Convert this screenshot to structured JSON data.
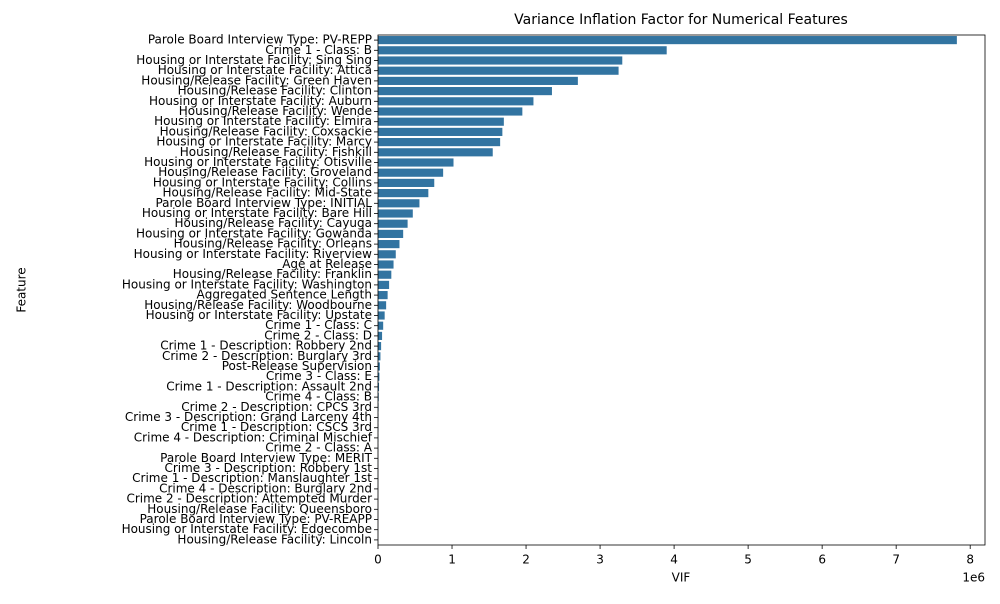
{
  "chart_data": {
    "type": "barh",
    "title": "Variance Inflation Factor for Numerical Features",
    "x_label": "VIF",
    "y_label": "Feature",
    "x_offset_label": "1e6",
    "color": "#3274a1",
    "categories": [
      "Parole Board Interview Type: PV-REPP",
      "Crime 1 - Class: B",
      "Housing or Interstate Facility: Sing Sing",
      "Housing or Interstate Facility: Attica",
      "Housing/Release Facility: Green Haven",
      "Housing/Release Facility: Clinton",
      "Housing or Interstate Facility: Auburn",
      "Housing/Release Facility: Wende",
      "Housing or Interstate Facility: Elmira",
      "Housing/Release Facility: Coxsackie",
      "Housing or Interstate Facility: Marcy",
      "Housing/Release Facility: Fishkill",
      "Housing or Interstate Facility: Otisville",
      "Housing/Release Facility: Groveland",
      "Housing or Interstate Facility: Collins",
      "Housing/Release Facility: Mid-State",
      "Parole Board Interview Type: INITIAL",
      "Housing or Interstate Facility: Bare Hill",
      "Housing/Release Facility: Cayuga",
      "Housing or Interstate Facility: Gowanda",
      "Housing/Release Facility: Orleans",
      "Housing or Interstate Facility: Riverview",
      "Age at Release",
      "Housing/Release Facility: Franklin",
      "Housing or Interstate Facility: Washington",
      "Aggregated Sentence Length",
      "Housing/Release Facility: Woodbourne",
      "Housing or Interstate Facility: Upstate",
      "Crime 1 - Class: C",
      "Crime 2 - Class: D",
      "Crime 1 - Description: Robbery 2nd",
      "Crime 2 - Description: Burglary 3rd",
      "Post-Release Supervision",
      "Crime 3 - Class: E",
      "Crime 1 - Description: Assault 2nd",
      "Crime 4 - Class: B",
      "Crime 2 - Description: CPCS 3rd",
      "Crime 3 - Description: Grand Larceny 4th",
      "Crime 1 - Description: CSCS 3rd",
      "Crime 4 - Description: Criminal Mischief",
      "Crime 2 - Class: A",
      "Parole Board Interview Type: MERIT",
      "Crime 3 - Description: Robbery 1st",
      "Crime 1 - Description: Manslaughter 1st",
      "Crime 4 - Description: Burglary 2nd",
      "Crime 2 - Description: Attempted Murder",
      "Housing/Release Facility: Queensboro",
      "Parole Board Interview Type: PV-REAPP",
      "Housing or Interstate Facility: Edgecombe",
      "Housing/Release Facility: Lincoln"
    ],
    "values": [
      7820000,
      3900000,
      3300000,
      3250000,
      2700000,
      2350000,
      2100000,
      1950000,
      1700000,
      1680000,
      1650000,
      1550000,
      1020000,
      880000,
      760000,
      680000,
      560000,
      470000,
      400000,
      340000,
      290000,
      240000,
      210000,
      180000,
      150000,
      130000,
      110000,
      90000,
      70000,
      55000,
      42000,
      33000,
      25000,
      19000,
      14000,
      10000,
      7500,
      5500,
      4000,
      3000,
      2200,
      1600,
      1200,
      900,
      700,
      500,
      350,
      250,
      150,
      80
    ],
    "xlim": [
      0,
      8200000
    ],
    "xticks": [
      {
        "value": 0,
        "label": "0"
      },
      {
        "value": 1000000,
        "label": "1"
      },
      {
        "value": 2000000,
        "label": "2"
      },
      {
        "value": 3000000,
        "label": "3"
      },
      {
        "value": 4000000,
        "label": "4"
      },
      {
        "value": 5000000,
        "label": "5"
      },
      {
        "value": 6000000,
        "label": "6"
      },
      {
        "value": 7000000,
        "label": "7"
      },
      {
        "value": 8000000,
        "label": "8"
      }
    ]
  }
}
